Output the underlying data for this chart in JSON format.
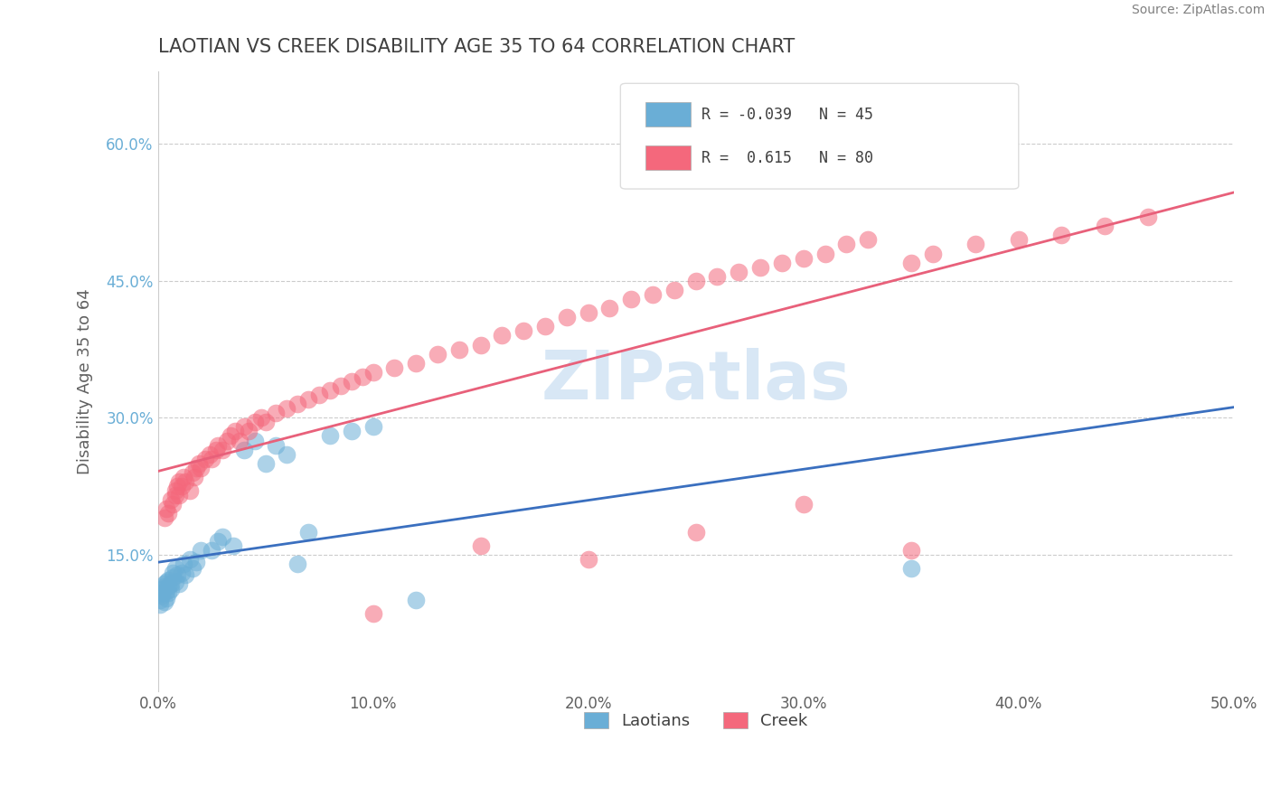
{
  "title": "LAOTIAN VS CREEK DISABILITY AGE 35 TO 64 CORRELATION CHART",
  "ylabel": "Disability Age 35 to 64",
  "source": "Source: ZipAtlas.com",
  "xlim": [
    0.0,
    0.5
  ],
  "ylim": [
    0.0,
    0.68
  ],
  "xticks": [
    0.0,
    0.1,
    0.2,
    0.3,
    0.4,
    0.5
  ],
  "xticklabels": [
    "0.0%",
    "10.0%",
    "20.0%",
    "30.0%",
    "40.0%",
    "50.0%"
  ],
  "ytick_positions": [
    0.15,
    0.3,
    0.45,
    0.6
  ],
  "yticklabels": [
    "15.0%",
    "30.0%",
    "45.0%",
    "60.0%"
  ],
  "laotians_color": "#6aaed6",
  "creek_color": "#f4687c",
  "laotians_line_color": "#3a6fbf",
  "creek_line_color": "#e8607a",
  "watermark": "ZIPatlas",
  "background_color": "#ffffff",
  "grid_color": "#cccccc",
  "title_color": "#404040",
  "axis_label_color": "#606060",
  "laotians_R": -0.039,
  "laotians_N": 45,
  "creek_R": 0.615,
  "creek_N": 80,
  "laotians_x": [
    0.001,
    0.001,
    0.002,
    0.002,
    0.002,
    0.003,
    0.003,
    0.003,
    0.004,
    0.004,
    0.004,
    0.005,
    0.005,
    0.005,
    0.006,
    0.006,
    0.007,
    0.007,
    0.008,
    0.008,
    0.009,
    0.01,
    0.011,
    0.012,
    0.013,
    0.015,
    0.016,
    0.018,
    0.02,
    0.025,
    0.028,
    0.03,
    0.035,
    0.04,
    0.045,
    0.05,
    0.055,
    0.06,
    0.065,
    0.07,
    0.08,
    0.09,
    0.1,
    0.12,
    0.35
  ],
  "laotians_y": [
    0.1,
    0.095,
    0.105,
    0.108,
    0.112,
    0.098,
    0.115,
    0.118,
    0.102,
    0.11,
    0.12,
    0.108,
    0.115,
    0.122,
    0.112,
    0.118,
    0.125,
    0.13,
    0.12,
    0.135,
    0.128,
    0.118,
    0.13,
    0.14,
    0.128,
    0.145,
    0.135,
    0.142,
    0.155,
    0.155,
    0.165,
    0.17,
    0.16,
    0.265,
    0.275,
    0.25,
    0.27,
    0.26,
    0.14,
    0.175,
    0.28,
    0.285,
    0.29,
    0.1,
    0.135
  ],
  "creek_x": [
    0.003,
    0.004,
    0.005,
    0.006,
    0.007,
    0.008,
    0.008,
    0.009,
    0.01,
    0.01,
    0.011,
    0.012,
    0.013,
    0.015,
    0.016,
    0.017,
    0.018,
    0.019,
    0.02,
    0.022,
    0.024,
    0.025,
    0.027,
    0.028,
    0.03,
    0.032,
    0.034,
    0.036,
    0.038,
    0.04,
    0.042,
    0.045,
    0.048,
    0.05,
    0.055,
    0.06,
    0.065,
    0.07,
    0.075,
    0.08,
    0.085,
    0.09,
    0.095,
    0.1,
    0.11,
    0.12,
    0.13,
    0.14,
    0.15,
    0.16,
    0.17,
    0.18,
    0.19,
    0.2,
    0.21,
    0.22,
    0.23,
    0.24,
    0.25,
    0.26,
    0.27,
    0.28,
    0.29,
    0.3,
    0.31,
    0.32,
    0.33,
    0.35,
    0.36,
    0.38,
    0.4,
    0.42,
    0.44,
    0.46,
    0.35,
    0.3,
    0.25,
    0.2,
    0.15,
    0.1
  ],
  "creek_y": [
    0.19,
    0.2,
    0.195,
    0.21,
    0.205,
    0.215,
    0.22,
    0.225,
    0.215,
    0.23,
    0.225,
    0.235,
    0.23,
    0.22,
    0.24,
    0.235,
    0.245,
    0.25,
    0.245,
    0.255,
    0.26,
    0.255,
    0.265,
    0.27,
    0.265,
    0.275,
    0.28,
    0.285,
    0.275,
    0.29,
    0.285,
    0.295,
    0.3,
    0.295,
    0.305,
    0.31,
    0.315,
    0.32,
    0.325,
    0.33,
    0.335,
    0.34,
    0.345,
    0.35,
    0.355,
    0.36,
    0.37,
    0.375,
    0.38,
    0.39,
    0.395,
    0.4,
    0.41,
    0.415,
    0.42,
    0.43,
    0.435,
    0.44,
    0.45,
    0.455,
    0.46,
    0.465,
    0.47,
    0.475,
    0.48,
    0.49,
    0.495,
    0.47,
    0.48,
    0.49,
    0.495,
    0.5,
    0.51,
    0.52,
    0.155,
    0.205,
    0.175,
    0.145,
    0.16,
    0.085
  ]
}
